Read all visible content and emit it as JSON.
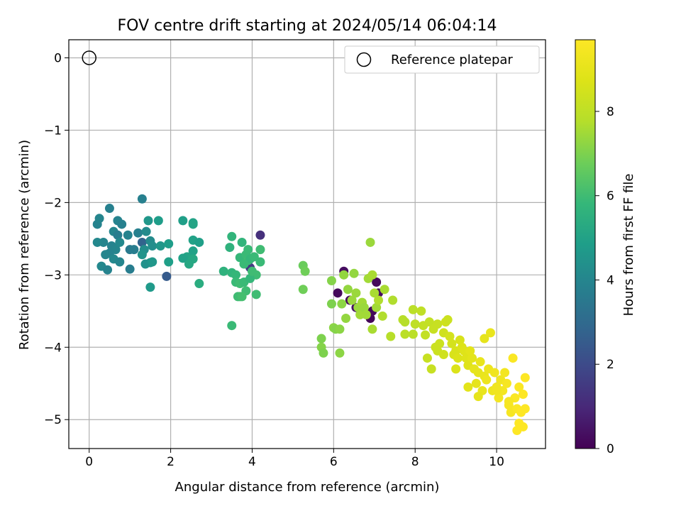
{
  "chart_data": {
    "type": "scatter",
    "title": "FOV centre drift starting at 2024/05/14 06:04:14",
    "xlabel": "Angular distance from reference (arcmin)",
    "ylabel": "Rotation from reference (arcmin)",
    "xlim": [
      -0.5,
      11.2
    ],
    "ylim": [
      -5.4,
      0.25
    ],
    "xticks": [
      0,
      2,
      4,
      6,
      8,
      10
    ],
    "yticks": [
      0,
      -1,
      -2,
      -3,
      -4,
      -5
    ],
    "grid": true,
    "legend": {
      "location": "top-right",
      "entries": [
        "Reference platepar"
      ]
    },
    "colorbar": {
      "label": "Hours from first FF file",
      "range": [
        0,
        9.7
      ],
      "ticks": [
        0,
        2,
        4,
        6,
        8
      ],
      "colormap": "viridis"
    },
    "reference_point": {
      "x": 0,
      "y": 0,
      "marker": "open circle",
      "color": "#000000"
    },
    "series": [
      {
        "name": "",
        "points": [
          [
            6.1,
            -3.25,
            0.2
          ],
          [
            6.25,
            -2.95,
            0.3
          ],
          [
            6.4,
            -3.35,
            0.2
          ],
          [
            6.55,
            -3.45,
            0.4
          ],
          [
            6.9,
            -3.6,
            0.1
          ],
          [
            7.05,
            -3.1,
            0.2
          ],
          [
            7.1,
            -3.25,
            0.3
          ],
          [
            6.95,
            -3.5,
            0.2
          ],
          [
            4.2,
            -2.45,
            1.2
          ],
          [
            3.95,
            -2.9,
            1.5
          ],
          [
            1.9,
            -3.02,
            2.5
          ],
          [
            1.3,
            -2.55,
            2.8
          ],
          [
            1.3,
            -1.95,
            3.8
          ],
          [
            0.5,
            -2.08,
            3.8
          ],
          [
            0.2,
            -2.3,
            3.9
          ],
          [
            0.25,
            -2.22,
            4.0
          ],
          [
            0.7,
            -2.25,
            3.9
          ],
          [
            0.8,
            -2.3,
            3.8
          ],
          [
            0.6,
            -2.4,
            4.0
          ],
          [
            0.7,
            -2.45,
            3.7
          ],
          [
            0.35,
            -2.55,
            4.0
          ],
          [
            0.55,
            -2.6,
            3.9
          ],
          [
            0.2,
            -2.55,
            4.1
          ],
          [
            0.65,
            -2.65,
            4.0
          ],
          [
            0.75,
            -2.55,
            4.1
          ],
          [
            0.5,
            -2.7,
            3.9
          ],
          [
            0.4,
            -2.72,
            4.0
          ],
          [
            0.6,
            -2.78,
            4.1
          ],
          [
            0.75,
            -2.82,
            4.0
          ],
          [
            0.3,
            -2.88,
            4.1
          ],
          [
            0.45,
            -2.93,
            3.9
          ],
          [
            1.0,
            -2.92,
            3.7
          ],
          [
            1.0,
            -2.65,
            3.6
          ],
          [
            1.1,
            -2.65,
            3.7
          ],
          [
            1.2,
            -2.42,
            3.8
          ],
          [
            0.95,
            -2.45,
            3.9
          ],
          [
            1.45,
            -2.25,
            4.6
          ],
          [
            1.4,
            -2.4,
            4.2
          ],
          [
            1.35,
            -2.65,
            4.3
          ],
          [
            1.3,
            -2.72,
            4.5
          ],
          [
            1.5,
            -2.53,
            4.2
          ],
          [
            1.55,
            -2.6,
            4.3
          ],
          [
            1.75,
            -2.6,
            4.6
          ],
          [
            1.7,
            -2.25,
            4.8
          ],
          [
            1.5,
            -2.83,
            4.5
          ],
          [
            1.38,
            -2.85,
            4.4
          ],
          [
            1.55,
            -2.82,
            4.6
          ],
          [
            1.5,
            -3.17,
            4.7
          ],
          [
            1.95,
            -2.57,
            4.8
          ],
          [
            1.95,
            -2.82,
            4.9
          ],
          [
            2.3,
            -2.25,
            4.9
          ],
          [
            2.55,
            -2.28,
            5.0
          ],
          [
            2.55,
            -2.3,
            5.1
          ],
          [
            2.55,
            -2.52,
            5.0
          ],
          [
            2.7,
            -2.55,
            4.9
          ],
          [
            2.4,
            -2.75,
            5.1
          ],
          [
            2.55,
            -2.67,
            5.0
          ],
          [
            2.55,
            -2.78,
            5.2
          ],
          [
            2.3,
            -2.77,
            5.0
          ],
          [
            2.45,
            -2.85,
            5.2
          ],
          [
            2.7,
            -3.12,
            5.4
          ],
          [
            3.3,
            -2.95,
            5.6
          ],
          [
            3.45,
            -2.62,
            5.6
          ],
          [
            3.5,
            -2.47,
            5.7
          ],
          [
            3.5,
            -2.97,
            5.7
          ],
          [
            3.6,
            -3.0,
            5.8
          ],
          [
            3.7,
            -2.76,
            5.8
          ],
          [
            3.75,
            -2.55,
            5.7
          ],
          [
            3.85,
            -2.72,
            5.9
          ],
          [
            3.9,
            -2.65,
            5.9
          ],
          [
            3.9,
            -2.8,
            6.0
          ],
          [
            3.95,
            -2.78,
            5.8
          ],
          [
            4.05,
            -2.75,
            5.9
          ],
          [
            4.2,
            -2.65,
            6.0
          ],
          [
            4.2,
            -2.82,
            5.9
          ],
          [
            4.1,
            -3.0,
            6.0
          ],
          [
            3.6,
            -3.1,
            5.9
          ],
          [
            3.7,
            -3.12,
            6.0
          ],
          [
            3.8,
            -3.1,
            5.9
          ],
          [
            3.85,
            -3.22,
            6.0
          ],
          [
            3.7,
            -3.3,
            6.1
          ],
          [
            3.65,
            -3.3,
            6.0
          ],
          [
            3.75,
            -3.3,
            6.1
          ],
          [
            4.1,
            -3.27,
            6.0
          ],
          [
            3.5,
            -3.7,
            5.9
          ],
          [
            3.8,
            -2.85,
            5.9
          ],
          [
            3.95,
            -3.05,
            5.8
          ],
          [
            4.0,
            -2.95,
            6.0
          ],
          [
            5.25,
            -2.87,
            6.7
          ],
          [
            5.3,
            -2.95,
            6.8
          ],
          [
            5.25,
            -3.2,
            6.8
          ],
          [
            5.7,
            -3.88,
            7.0
          ],
          [
            5.7,
            -4.0,
            7.1
          ],
          [
            5.75,
            -4.08,
            7.0
          ],
          [
            5.95,
            -3.4,
            7.0
          ],
          [
            5.95,
            -3.08,
            7.1
          ],
          [
            6.0,
            -3.73,
            7.2
          ],
          [
            6.05,
            -3.75,
            7.1
          ],
          [
            6.15,
            -3.75,
            7.2
          ],
          [
            6.15,
            -4.08,
            7.2
          ],
          [
            6.25,
            -3.0,
            7.3
          ],
          [
            6.2,
            -3.4,
            7.2
          ],
          [
            6.3,
            -3.6,
            7.3
          ],
          [
            6.35,
            -3.2,
            7.3
          ],
          [
            6.45,
            -3.35,
            7.4
          ],
          [
            6.5,
            -2.98,
            7.3
          ],
          [
            6.55,
            -3.25,
            7.4
          ],
          [
            6.6,
            -3.45,
            7.4
          ],
          [
            6.65,
            -3.55,
            7.5
          ],
          [
            6.7,
            -3.38,
            7.5
          ],
          [
            6.75,
            -3.45,
            7.4
          ],
          [
            6.8,
            -3.55,
            7.5
          ],
          [
            6.85,
            -3.05,
            7.5
          ],
          [
            6.9,
            -2.55,
            7.4
          ],
          [
            6.95,
            -3.0,
            7.6
          ],
          [
            7.0,
            -3.25,
            7.6
          ],
          [
            7.05,
            -3.45,
            7.5
          ],
          [
            6.95,
            -3.75,
            7.6
          ],
          [
            7.1,
            -3.35,
            7.7
          ],
          [
            7.2,
            -3.57,
            7.7
          ],
          [
            7.25,
            -3.2,
            7.6
          ],
          [
            7.4,
            -3.85,
            7.8
          ],
          [
            7.45,
            -3.35,
            7.7
          ],
          [
            7.7,
            -3.62,
            7.8
          ],
          [
            7.75,
            -3.65,
            7.8
          ],
          [
            7.75,
            -3.82,
            7.9
          ],
          [
            7.95,
            -3.48,
            7.9
          ],
          [
            8.0,
            -3.68,
            8.0
          ],
          [
            7.95,
            -3.82,
            7.9
          ],
          [
            8.15,
            -3.5,
            8.0
          ],
          [
            8.2,
            -3.7,
            8.1
          ],
          [
            8.25,
            -3.83,
            8.1
          ],
          [
            8.3,
            -4.15,
            8.2
          ],
          [
            8.35,
            -3.65,
            8.1
          ],
          [
            8.45,
            -3.75,
            8.2
          ],
          [
            8.55,
            -3.68,
            8.2
          ],
          [
            8.55,
            -4.05,
            8.3
          ],
          [
            8.6,
            -3.95,
            8.3
          ],
          [
            8.7,
            -3.8,
            8.4
          ],
          [
            8.7,
            -4.1,
            8.4
          ],
          [
            8.75,
            -3.65,
            8.4
          ],
          [
            8.8,
            -3.62,
            8.3
          ],
          [
            8.85,
            -3.85,
            8.5
          ],
          [
            8.9,
            -3.95,
            8.5
          ],
          [
            8.95,
            -4.1,
            8.6
          ],
          [
            9.0,
            -4.05,
            8.6
          ],
          [
            9.05,
            -4.15,
            8.7
          ],
          [
            9.1,
            -3.9,
            8.6
          ],
          [
            9.15,
            -4.0,
            8.7
          ],
          [
            9.2,
            -4.05,
            8.8
          ],
          [
            9.25,
            -4.15,
            8.8
          ],
          [
            9.3,
            -4.25,
            8.8
          ],
          [
            9.35,
            -4.05,
            8.9
          ],
          [
            9.4,
            -4.15,
            8.9
          ],
          [
            9.45,
            -4.3,
            9.0
          ],
          [
            9.5,
            -4.5,
            9.0
          ],
          [
            9.55,
            -4.35,
            9.0
          ],
          [
            9.6,
            -4.2,
            9.1
          ],
          [
            9.65,
            -4.6,
            9.1
          ],
          [
            9.7,
            -4.4,
            9.1
          ],
          [
            9.75,
            -4.45,
            9.2
          ],
          [
            9.8,
            -4.3,
            9.2
          ],
          [
            9.85,
            -3.8,
            9.1
          ],
          [
            9.9,
            -4.6,
            9.2
          ],
          [
            9.95,
            -4.35,
            9.3
          ],
          [
            10.0,
            -4.55,
            9.3
          ],
          [
            10.05,
            -4.7,
            9.4
          ],
          [
            10.1,
            -4.45,
            9.3
          ],
          [
            10.15,
            -4.6,
            9.4
          ],
          [
            10.2,
            -4.35,
            9.4
          ],
          [
            10.25,
            -4.5,
            9.5
          ],
          [
            10.3,
            -4.8,
            9.5
          ],
          [
            10.35,
            -4.9,
            9.5
          ],
          [
            10.4,
            -4.15,
            9.6
          ],
          [
            10.45,
            -4.7,
            9.6
          ],
          [
            10.5,
            -4.85,
            9.6
          ],
          [
            10.5,
            -5.15,
            9.7
          ],
          [
            10.55,
            -5.05,
            9.7
          ],
          [
            10.6,
            -4.9,
            9.7
          ],
          [
            10.65,
            -4.65,
            9.7
          ],
          [
            10.65,
            -5.1,
            9.7
          ],
          [
            10.7,
            -4.85,
            9.7
          ],
          [
            10.7,
            -4.42,
            9.7
          ],
          [
            10.55,
            -4.55,
            9.6
          ],
          [
            8.4,
            -4.3,
            8.2
          ],
          [
            8.5,
            -4.0,
            8.3
          ],
          [
            9.0,
            -4.3,
            8.7
          ],
          [
            9.3,
            -4.55,
            8.9
          ],
          [
            9.55,
            -4.68,
            9.0
          ],
          [
            9.7,
            -3.88,
            9.0
          ],
          [
            10.0,
            -4.6,
            9.3
          ],
          [
            10.3,
            -4.75,
            9.5
          ]
        ]
      }
    ]
  }
}
